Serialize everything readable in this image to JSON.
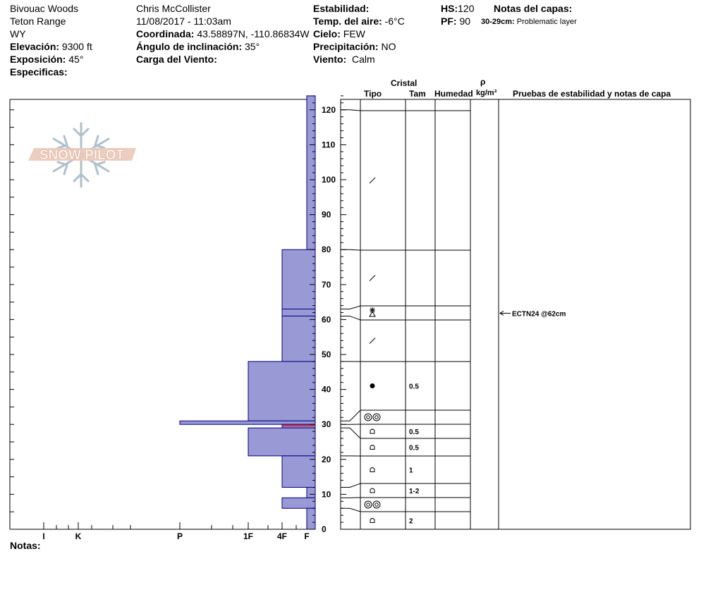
{
  "header": {
    "location": "Bivouac Woods",
    "range": "Teton Range",
    "state": "WY",
    "elevation_label": "Elevación:",
    "elevation": "9300 ft",
    "aspect_label": "Exposición:",
    "aspect": "45°",
    "specifics_label": "Especificas:",
    "observer": "Chris McCollister",
    "datetime": "11/08/2017 - 11:03am",
    "coord_label": "Coordinada:",
    "coord": "43.58897N, -110.86834W",
    "slope_label": "Ángulo de inclinación:",
    "slope": "35°",
    "wind_load_label": "Carga del Viento:",
    "stability_label": "Estabilidad:",
    "air_temp_label": "Temp. del aire:",
    "air_temp": "-6°C",
    "sky_label": "Cielo:",
    "sky": "FEW",
    "precip_label": "Precipitación:",
    "precip": "NO",
    "wind_label": "Viento:",
    "wind": "Calm",
    "hs_label": "HS:",
    "hs": "120",
    "pf_label": "PF:",
    "pf": "90",
    "layer_notes_label": "Notas del capas:",
    "layer_note_depth": "30-29cm:",
    "layer_note_text": "Problematic layer"
  },
  "logo": "SNOW PILOT",
  "notes_label": "Notas:",
  "columns": {
    "crystal": "Cristal",
    "type": "Tipo",
    "size": "Tam",
    "moisture": "Humedad",
    "rho": "ρ",
    "density_unit": "kg/m³",
    "tests": "Pruebas de estabilidad y notas de capa"
  },
  "chart_data": {
    "type": "bar",
    "hardness_ticks": [
      "I",
      "K",
      "P",
      "1F",
      "4F",
      "F"
    ],
    "y_ticks": [
      0,
      10,
      20,
      30,
      40,
      50,
      60,
      70,
      80,
      90,
      100,
      110,
      120
    ],
    "ylim": [
      0,
      124
    ],
    "hand_hardness_layers": [
      {
        "top": 124,
        "bottom": 80,
        "hardness": "F"
      },
      {
        "top": 80,
        "bottom": 63,
        "hardness": "4F"
      },
      {
        "top": 63,
        "bottom": 61,
        "hardness": "4F"
      },
      {
        "top": 61,
        "bottom": 48,
        "hardness": "4F"
      },
      {
        "top": 48,
        "bottom": 31,
        "hardness": "1F"
      },
      {
        "top": 31,
        "bottom": 30,
        "hardness": "P"
      },
      {
        "top": 30,
        "bottom": 29,
        "hardness": "4F"
      },
      {
        "top": 29,
        "bottom": 21,
        "hardness": "1F"
      },
      {
        "top": 21,
        "bottom": 12,
        "hardness": "4F"
      },
      {
        "top": 12,
        "bottom": 9,
        "hardness": "F"
      },
      {
        "top": 9,
        "bottom": 6,
        "hardness": "4F"
      },
      {
        "top": 6,
        "bottom": 0,
        "hardness": "F"
      }
    ],
    "layer_table": [
      {
        "top": 120,
        "bottom": 80,
        "glyph": "slash",
        "size": ""
      },
      {
        "top": 80,
        "bottom": 64,
        "glyph": "slash",
        "size": ""
      },
      {
        "top": 64,
        "bottom": 60,
        "glyph": "star-over-triangle",
        "size": ""
      },
      {
        "top": 60,
        "bottom": 48,
        "glyph": "slash",
        "size": ""
      },
      {
        "top": 48,
        "bottom": 34,
        "glyph": "dot",
        "size": "0.5"
      },
      {
        "top": 34,
        "bottom": 30,
        "glyph": "double-ring",
        "size": ""
      },
      {
        "top": 30,
        "bottom": 26,
        "glyph": "cup",
        "size": "0.5"
      },
      {
        "top": 26,
        "bottom": 21,
        "glyph": "cup",
        "size": "0.5"
      },
      {
        "top": 21,
        "bottom": 13,
        "glyph": "cup",
        "size": "1"
      },
      {
        "top": 13,
        "bottom": 9,
        "glyph": "cup",
        "size": "1-2"
      },
      {
        "top": 9,
        "bottom": 5,
        "glyph": "double-ring",
        "size": ""
      },
      {
        "top": 5,
        "bottom": 0,
        "glyph": "cup",
        "size": "2"
      }
    ],
    "stability_tests": [
      {
        "depth": 62,
        "label": "ECTN24 @62cm"
      }
    ],
    "colors": {
      "hardness_fill": "#9999d6",
      "hardness_stroke": "#00007f",
      "problem_layer": "#ff0000"
    }
  }
}
